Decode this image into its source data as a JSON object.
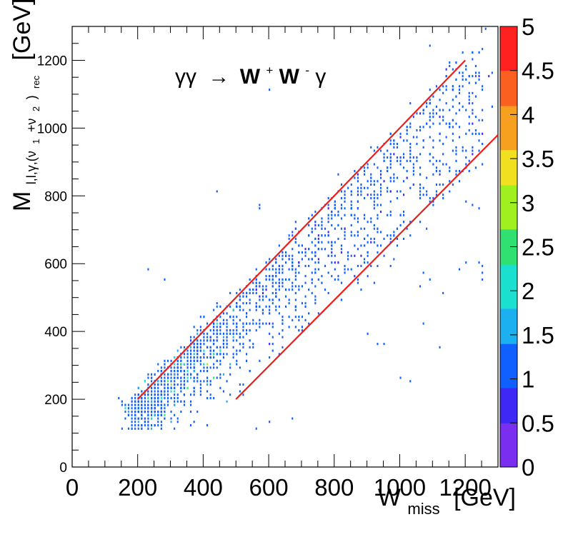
{
  "chart_data": {
    "type": "heatmap",
    "title": "γγ → W⁺W⁻γ",
    "title_parts": {
      "gg": "γγ",
      "arrow": "→",
      "w": "W",
      "plus": "+",
      "w2": "W",
      "minus": "-",
      "gamma": "γ"
    },
    "xlabel": "W_miss [GeV]",
    "xlabel_parts": {
      "main": "W",
      "sub": "miss",
      "unit": "[GeV]"
    },
    "ylabel": "M_{l,l,γ,(ν1+ν2)rec} [GeV]",
    "ylabel_parts": {
      "main": "M",
      "sub": "l,l,γ,(ν",
      "sub1": "1",
      "plus": "+ν",
      "sub2": "2",
      "close": ")",
      "rec": "rec",
      "unit": "[GeV]"
    },
    "xlim": [
      0,
      1300
    ],
    "ylim": [
      0,
      1300
    ],
    "zlim": [
      0,
      5
    ],
    "x_ticks": [
      0,
      200,
      400,
      600,
      800,
      1000,
      1200
    ],
    "y_ticks": [
      0,
      200,
      400,
      600,
      800,
      1000,
      1200
    ],
    "z_ticks": [
      "0",
      "0.5",
      "1",
      "1.5",
      "2",
      "2.5",
      "3",
      "3.5",
      "4",
      "4.5",
      "5"
    ],
    "bin_size_gev": 10,
    "cut_lines": [
      {
        "name": "upper",
        "x": [
          200,
          1200
        ],
        "y": [
          200,
          1200
        ],
        "color": "#e8201c"
      },
      {
        "name": "lower",
        "x": [
          500,
          1300
        ],
        "y": [
          200,
          980
        ],
        "color": "#e8201c"
      }
    ],
    "density_model": "events concentrated between the two lines, most dense near x≈250-600, y≈250-550, sparse tail up to ~1250 GeV",
    "isolated_points": [
      [
        440,
        810
      ],
      [
        570,
        770
      ],
      [
        570,
        760
      ],
      [
        230,
        580
      ],
      [
        280,
        555
      ],
      [
        1095,
        1240
      ],
      [
        1260,
        1290
      ],
      [
        1170,
        1195
      ],
      [
        1150,
        1180
      ],
      [
        1200,
        1140
      ],
      [
        1235,
        1130
      ],
      [
        1250,
        1110
      ],
      [
        605,
        1110
      ],
      [
        1255,
        1050
      ],
      [
        1155,
        1015
      ],
      [
        1215,
        1010
      ],
      [
        1230,
        985
      ],
      [
        1060,
        860
      ],
      [
        1185,
        840
      ],
      [
        1085,
        805
      ],
      [
        1130,
        790
      ],
      [
        1200,
        780
      ],
      [
        1225,
        775
      ],
      [
        1245,
        760
      ],
      [
        1060,
        720
      ],
      [
        1010,
        720
      ],
      [
        1080,
        700
      ],
      [
        1240,
        600
      ],
      [
        1250,
        590
      ],
      [
        1180,
        580
      ],
      [
        1205,
        605
      ],
      [
        1070,
        570
      ],
      [
        1095,
        555
      ],
      [
        1065,
        530
      ],
      [
        1130,
        510
      ],
      [
        1250,
        570
      ],
      [
        1250,
        555
      ],
      [
        925,
        540
      ],
      [
        840,
        615
      ],
      [
        1005,
        260
      ],
      [
        1030,
        255
      ],
      [
        900,
        390
      ],
      [
        930,
        365
      ],
      [
        1120,
        355
      ],
      [
        1070,
        420
      ],
      [
        950,
        360
      ],
      [
        600,
        135
      ],
      [
        670,
        140
      ],
      [
        560,
        115
      ]
    ],
    "colors": {
      "palette": [
        "#7a2ff0",
        "#3e28f5",
        "#1060ff",
        "#1cb0f0",
        "#1ae0d0",
        "#30e070",
        "#a0f020",
        "#f0e020",
        "#f7a020",
        "#fb6020",
        "#ff2020"
      ],
      "main_points": "#1b6cf5",
      "line": "#e8201c"
    }
  }
}
